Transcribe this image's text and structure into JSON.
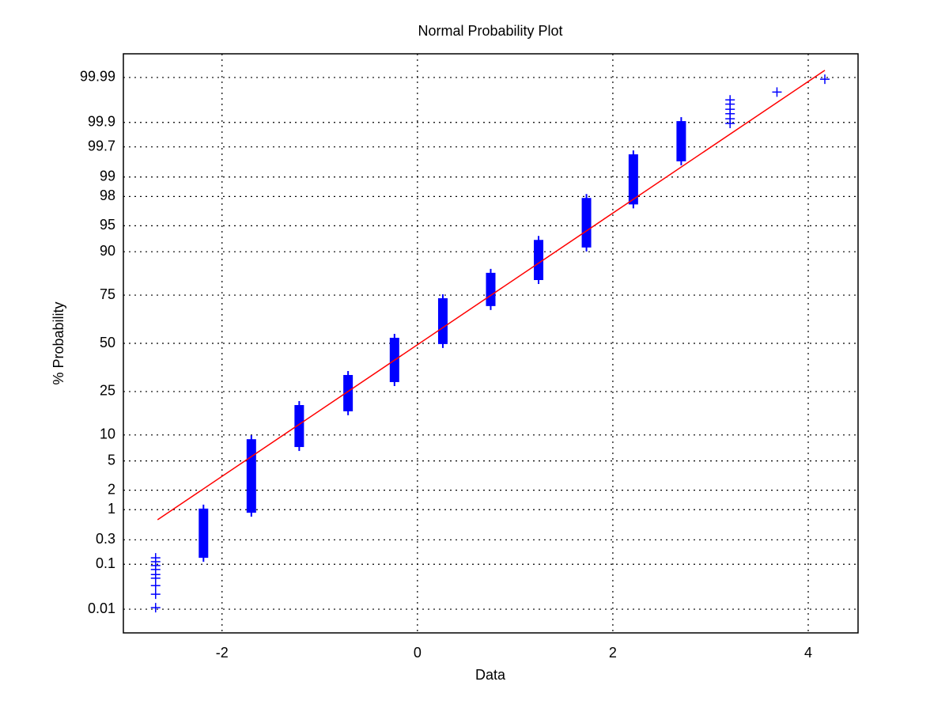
{
  "chart_data": {
    "type": "probability",
    "title": "Normal Probability Plot",
    "x_label": "Data",
    "y_label": "% Probability",
    "xlim": [
      -3.01,
      4.51
    ],
    "xticks": [
      -2,
      0,
      2,
      4
    ],
    "ylim": [
      0.00256,
      99.99744
    ],
    "yticks": [
      0.01,
      0.1,
      0.3,
      1,
      2,
      5,
      10,
      25,
      50,
      75,
      90,
      95,
      98,
      99,
      99.7,
      99.9,
      99.99
    ],
    "grid": true,
    "color": "#0000ff",
    "fit_color": "#ff0000",
    "clusters": [
      {
        "x": -2.19,
        "low": 0.135,
        "high": 1.04
      },
      {
        "x": -1.7,
        "low": 0.89,
        "high": 9.0
      },
      {
        "x": -1.21,
        "low": 7.35,
        "high": 19.4
      },
      {
        "x": -0.71,
        "low": 17.1,
        "high": 32.9
      },
      {
        "x": -0.235,
        "low": 29.4,
        "high": 53.1
      },
      {
        "x": 0.26,
        "low": 49.6,
        "high": 73.6
      },
      {
        "x": 0.75,
        "low": 69.9,
        "high": 83.8
      },
      {
        "x": 1.24,
        "low": 81.2,
        "high": 92.6
      },
      {
        "x": 1.73,
        "low": 91.0,
        "high": 97.9
      },
      {
        "x": 2.21,
        "low": 97.4,
        "high": 99.59
      },
      {
        "x": 2.7,
        "low": 99.455,
        "high": 99.906
      }
    ],
    "points": {
      "x": [
        -2.68,
        -2.68,
        -2.68,
        -2.68,
        -2.68,
        -2.68,
        -2.68,
        -2.68,
        -2.68,
        3.2,
        3.2,
        3.2,
        3.2,
        3.2,
        3.2,
        3.68,
        4.17
      ],
      "y": [
        0.135,
        0.113,
        0.094,
        0.078,
        0.061,
        0.051,
        0.035,
        0.0225,
        0.0109,
        99.967,
        99.959,
        99.947,
        99.934,
        99.916,
        99.895,
        99.978,
        99.989
      ]
    },
    "fit": {
      "x": [
        -2.66,
        4.17
      ],
      "y": [
        0.68,
        99.9933
      ]
    }
  }
}
